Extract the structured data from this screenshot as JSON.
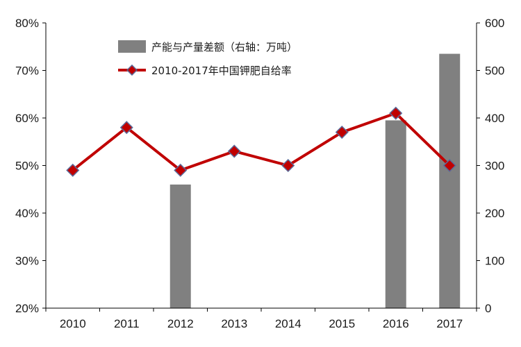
{
  "chart_data": {
    "type": "bar+line",
    "categories": [
      "2010",
      "2011",
      "2012",
      "2013",
      "2014",
      "2015",
      "2016",
      "2017"
    ],
    "series": [
      {
        "name": "产能与产量差额（右轴：万吨）",
        "type": "bar",
        "axis": "right",
        "values": [
          null,
          null,
          260,
          null,
          null,
          null,
          395,
          535
        ]
      },
      {
        "name": "2010-2017年中国钾肥自给率",
        "type": "line",
        "axis": "left",
        "values": [
          0.49,
          0.58,
          0.49,
          0.53,
          0.5,
          0.57,
          0.61,
          0.5
        ]
      }
    ],
    "y_left": {
      "min": 0.2,
      "max": 0.8,
      "ticks": [
        0.2,
        0.3,
        0.4,
        0.5,
        0.6,
        0.7,
        0.8
      ],
      "tick_labels": [
        "20%",
        "30%",
        "40%",
        "50%",
        "60%",
        "70%",
        "80%"
      ]
    },
    "y_right": {
      "min": 0,
      "max": 600,
      "ticks": [
        0,
        100,
        200,
        300,
        400,
        500,
        600
      ],
      "tick_labels": [
        "0",
        "100",
        "200",
        "300",
        "400",
        "500",
        "600"
      ]
    },
    "legend_position": "top-left",
    "grid": false,
    "colors": {
      "bar": "#808080",
      "line": "#c00000",
      "marker": "#5b6b9a",
      "axis": "#000000"
    }
  }
}
